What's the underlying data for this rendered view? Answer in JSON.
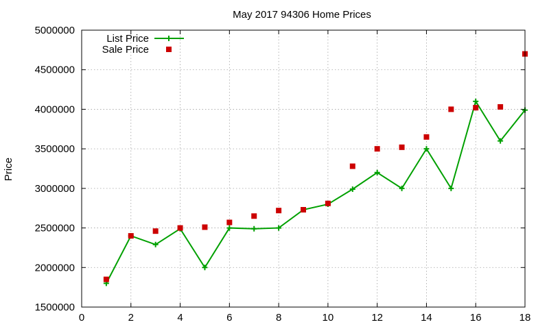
{
  "chart_data": {
    "type": "line",
    "title": "May 2017 94306 Home Prices",
    "xlabel": "",
    "ylabel": "Price",
    "xlim": [
      0,
      18
    ],
    "ylim": [
      1500000,
      5000000
    ],
    "x_ticks": [
      0,
      2,
      4,
      6,
      8,
      10,
      12,
      14,
      16,
      18
    ],
    "x_tick_labels": [
      "0",
      "2",
      "4",
      "6",
      "8",
      "10",
      "12",
      "14",
      "16",
      "18"
    ],
    "y_ticks": [
      1500000,
      2000000,
      2500000,
      3000000,
      3500000,
      4000000,
      4500000,
      5000000
    ],
    "y_tick_labels": [
      "1500000",
      "2000000",
      "2500000",
      "3000000",
      "3500000",
      "4000000",
      "4500000",
      "5000000"
    ],
    "grid": true,
    "legend_position": "top-left",
    "x": [
      1,
      2,
      3,
      4,
      5,
      6,
      7,
      8,
      9,
      10,
      11,
      12,
      13,
      14,
      15,
      16,
      17,
      18
    ],
    "series": [
      {
        "name": "List Price",
        "style": "line-with-plus-markers",
        "color": "#00a000",
        "values": [
          1800000,
          2400000,
          2290000,
          2490000,
          2000000,
          2500000,
          2490000,
          2500000,
          2730000,
          2800000,
          2990000,
          3200000,
          3000000,
          3500000,
          3000000,
          4100000,
          3600000,
          3990000
        ]
      },
      {
        "name": "Sale Price",
        "style": "square-markers",
        "color": "#cc0000",
        "values": [
          1850000,
          2400000,
          2460000,
          2500000,
          2510000,
          2570000,
          2650000,
          2720000,
          2730000,
          2810000,
          3280000,
          3500000,
          3520000,
          3650000,
          4000000,
          4020000,
          4030000,
          4700000
        ]
      }
    ]
  }
}
